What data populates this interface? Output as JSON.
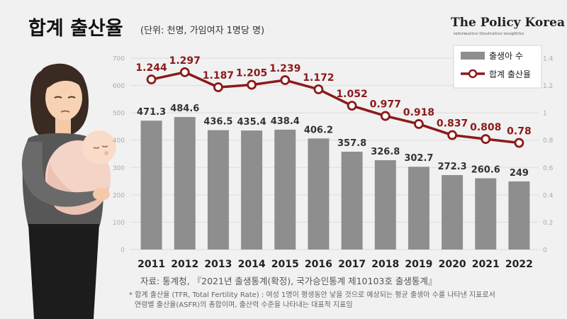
{
  "header": {
    "title": "합계 출산율",
    "subtitle": "(단위: 천명, 가임여자 1명당 명)",
    "brand": "The Policy Korea",
    "brand_tagline": "informative·illustrative·insightful"
  },
  "footer": {
    "source": "자료: 통계청, 『2021년 출생통계(확정), 국가승인통계 제10103호 출생통계』",
    "note_line1": "* 합계 출산율 (TFR, Total Fertility Rate) : 여성 1명이 평생동안 낳을 것으로 예상되는 평균 출생아 수를 나타낸 지표로서",
    "note_line2": "연령별 출산율(ASFR)의 총합이며, 출산력 수준을 나타내는 대표적 지표임"
  },
  "colors": {
    "bar": "#8e8e8e",
    "line": "#8b1a1a",
    "marker_fill": "#ffffff",
    "grid": "#dcdcdc"
  },
  "chart_data": {
    "type": "bar",
    "title": "합계 출산율",
    "subtitle": "(단위: 천명, 가임여자 1명당 명)",
    "categories": [
      "2011",
      "2012",
      "2013",
      "2014",
      "2015",
      "2016",
      "2017",
      "2018",
      "2019",
      "2020",
      "2021",
      "2022"
    ],
    "series": [
      {
        "name": "출생아 수",
        "type": "bar",
        "axis": "left",
        "values": [
          471.3,
          484.6,
          436.5,
          435.4,
          438.4,
          406.2,
          357.8,
          326.8,
          302.7,
          272.3,
          260.6,
          249
        ],
        "labels": [
          "471.3",
          "484.6",
          "436.5",
          "435.4",
          "438.4",
          "406.2",
          "357.8",
          "326.8",
          "302.7",
          "272.3",
          "260.6",
          "249"
        ]
      },
      {
        "name": "합계 출산율",
        "type": "line",
        "axis": "right",
        "values": [
          1.244,
          1.297,
          1.187,
          1.205,
          1.239,
          1.172,
          1.052,
          0.977,
          0.918,
          0.837,
          0.808,
          0.78
        ],
        "labels": [
          "1.244",
          "1.297",
          "1.187",
          "1.205",
          "1.239",
          "1.172",
          "1.052",
          "0.977",
          "0.918",
          "0.837",
          "0.808",
          "0.78"
        ]
      }
    ],
    "y_left": {
      "min": 0,
      "max": 700,
      "ticks": [
        "0",
        "100",
        "200",
        "300",
        "400",
        "500",
        "600",
        "700"
      ]
    },
    "y_right": {
      "min": 0,
      "max": 1.4,
      "ticks": [
        "0",
        "0.2",
        "0.4",
        "0.6",
        "0.8",
        "1",
        "1.2",
        "1.4"
      ]
    },
    "grid": true,
    "legend_position": "top-right"
  }
}
